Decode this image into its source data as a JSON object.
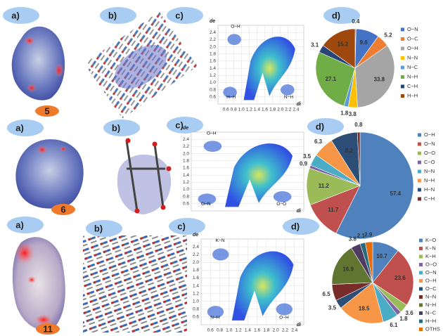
{
  "rows": [
    {
      "a": "a)",
      "b": "b)",
      "c": "c)",
      "d": "d)",
      "compound": "5"
    },
    {
      "a": "a)",
      "b": "b)",
      "c": "c)",
      "d": "d)",
      "compound": "6"
    },
    {
      "a": "a)",
      "b": "b)",
      "c": "c)",
      "d": "d)",
      "compound": "11"
    }
  ],
  "chart_data": [
    {
      "type": "fingerprint",
      "x_label": "di",
      "y_label": "de",
      "xlim": [
        0.4,
        2.6
      ],
      "ylim": [
        0.4,
        2.6
      ],
      "grid": true,
      "xticks": [
        0.6,
        0.8,
        {
          "value": 1,
          "label": "1.0"
        },
        1.2,
        1.4,
        1.6,
        1.8,
        {
          "value": 2,
          "label": "2.0"
        },
        2.2,
        2.4
      ],
      "yticks": [
        0.6,
        0.8,
        {
          "value": 1,
          "label": "1.0"
        },
        1.2,
        1.4,
        1.6,
        1.8,
        {
          "value": 2,
          "label": "2.0"
        },
        2.2,
        2.4
      ],
      "annotations": [
        "O−H",
        "H−H",
        "N−H"
      ]
    },
    {
      "type": "pie",
      "categories": [
        null,
        "O−N",
        "O−C",
        "O−H",
        "N−N",
        "N−C",
        "N−H",
        "C−H",
        "H−H"
      ],
      "values": [
        0.4,
        9.6,
        5.2,
        33.8,
        3.8,
        1.8,
        27.1,
        3.1,
        15.2
      ],
      "colors": [
        "#7f7f7f",
        "#4472c4",
        "#ed7d31",
        "#a5a5a5",
        "#ffc000",
        "#5b9bd5",
        "#70ad47",
        "#264478",
        "#9e480e"
      ]
    },
    {
      "type": "fingerprint",
      "x_label": "di",
      "y_label": "de",
      "xlim": [
        0.4,
        2.6
      ],
      "ylim": [
        0.4,
        2.6
      ],
      "grid": true,
      "yticks": [
        0.6,
        0.8,
        {
          "value": 1,
          "label": "1.0"
        },
        1.2,
        1.4,
        1.6,
        1.8,
        {
          "value": 2,
          "label": "2.0"
        },
        2.2,
        2.4
      ],
      "annotations": [
        "O−H",
        "O−N",
        "O−O"
      ]
    },
    {
      "type": "pie",
      "categories": [
        "O−H",
        "O−N",
        "O−O",
        "C−O",
        "N−N",
        "N−H",
        "H−N",
        "C−H"
      ],
      "values": [
        57.4,
        11.7,
        11.2,
        0.9,
        3.5,
        6.3,
        8.2,
        0.8
      ],
      "colors": [
        "#4f81bd",
        "#c0504d",
        "#9bbb59",
        "#8064a2",
        "#4bacc6",
        "#f79646",
        "#2c4d75",
        "#772c2a"
      ]
    },
    {
      "type": "fingerprint",
      "x_label": "di",
      "y_label": "de",
      "xlim": [
        0.4,
        2.6
      ],
      "ylim": [
        0.4,
        2.6
      ],
      "grid": true,
      "xticks": [
        0.6,
        0.8,
        {
          "value": 1,
          "label": "1.0"
        },
        1.2,
        1.4,
        1.6,
        1.8,
        {
          "value": 2,
          "label": "2.0"
        },
        2.2,
        2.4
      ],
      "yticks": [
        0.6,
        0.8,
        {
          "value": 1,
          "label": "1.0"
        },
        1.2,
        1.4,
        1.6,
        1.8,
        {
          "value": 2,
          "label": "2.0"
        },
        2.2,
        2.4
      ],
      "annotations": [
        "K−N",
        "N−H",
        "O−H"
      ]
    },
    {
      "type": "pie",
      "categories": [
        "K−O",
        "K−N",
        "K−H",
        "O−O",
        "O−N",
        "O−H",
        "O−C",
        "N−N",
        "N−H",
        "N−C",
        "H−H",
        "OTHS"
      ],
      "values": [
        10.7,
        23.6,
        3.6,
        1.8,
        6.1,
        18.5,
        3.5,
        6.5,
        16.9,
        3.8,
        2.1,
        2.9
      ],
      "colors": [
        "#4f81bd",
        "#c0504d",
        "#9bbb59",
        "#8064a2",
        "#4bacc6",
        "#f79646",
        "#2c4d75",
        "#772c2a",
        "#5f7530",
        "#4d3b62",
        "#276a7c",
        "#e46c0a"
      ]
    }
  ]
}
